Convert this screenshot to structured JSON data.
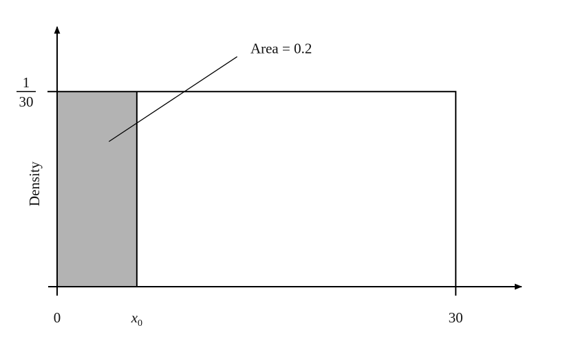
{
  "chart_data": {
    "type": "area",
    "title": "",
    "xlabel": "",
    "ylabel": "Density",
    "xlim": [
      0,
      34.8
    ],
    "ylim": [
      0,
      0.04405
    ],
    "x_ticks": [
      {
        "value": 0,
        "label": "0"
      },
      {
        "value": 6,
        "label": "x",
        "subscript": "0"
      },
      {
        "value": 30,
        "label": "30"
      }
    ],
    "y_ticks": [
      {
        "value": 0.033333,
        "numerator": "1",
        "denominator": "30"
      }
    ],
    "density": {
      "x_start": 0,
      "x_end": 30,
      "height": 0.033333
    },
    "shaded_region": {
      "x_start": 0,
      "x_end": 6,
      "area": 0.2,
      "color": "#b3b3b3"
    },
    "annotation": {
      "text": "Area = 0.2",
      "pointer_start": {
        "x": 3.9,
        "y": 0.0248
      },
      "pointer_end": {
        "x": 13.55,
        "y": 0.0393
      },
      "text_anchor": {
        "x": 14.55,
        "y": 0.0399
      }
    },
    "grid": false,
    "legend": "none",
    "colors": {
      "axis": "#000000",
      "outline": "#000000",
      "shade": "#b3b3b3"
    }
  }
}
